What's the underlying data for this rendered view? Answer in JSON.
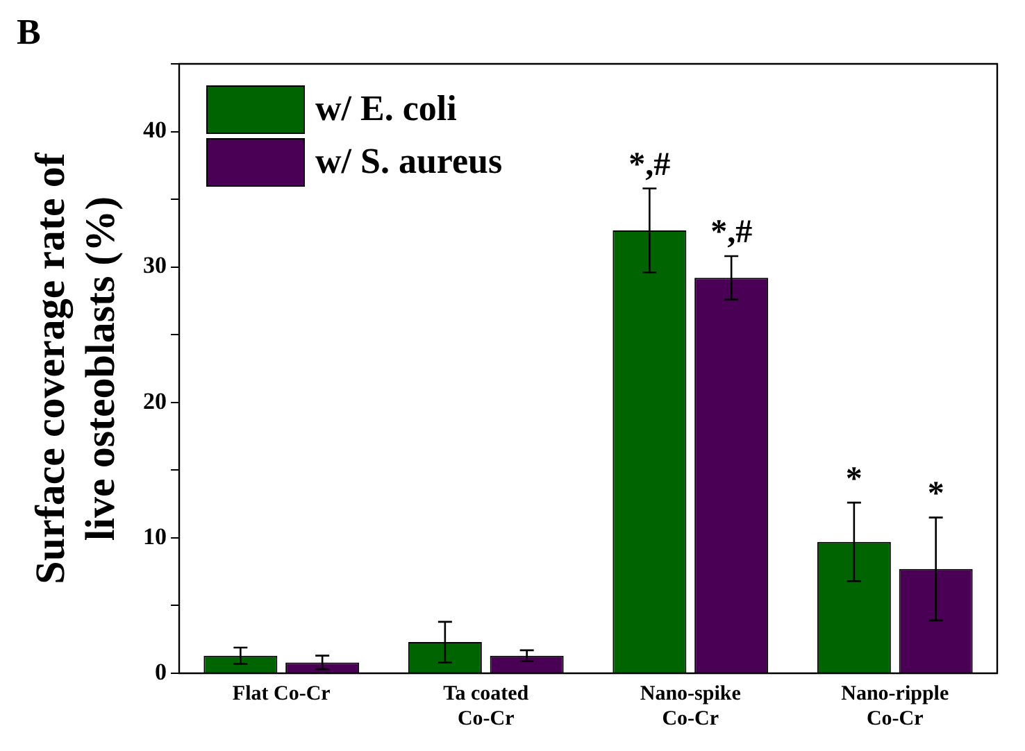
{
  "chart_data": {
    "type": "bar",
    "title": "B",
    "ylabel": "Surface coverage rate of\nlive osteoblasts (%)",
    "categories": [
      "Flat Co-Cr",
      "Ta coated\nCo-Cr",
      "Nano-spike\nCo-Cr",
      "Nano-ripple\nCo-Cr"
    ],
    "series": [
      {
        "name": "w/ E. coli",
        "color": "#006400",
        "values": [
          1.3,
          2.3,
          32.7,
          9.7
        ],
        "errors": [
          0.6,
          1.5,
          3.1,
          2.9
        ]
      },
      {
        "name": "w/ S. aureus",
        "color": "#4a0055",
        "values": [
          0.8,
          1.3,
          29.2,
          7.7
        ],
        "errors": [
          0.5,
          0.4,
          1.6,
          3.8
        ]
      }
    ],
    "ylim": [
      0,
      45
    ],
    "yticks": [
      0,
      {
        "value": 5,
        "label": null
      },
      10,
      {
        "value": 15,
        "label": null
      },
      20,
      {
        "value": 25,
        "label": null
      },
      30,
      {
        "value": 35,
        "label": null
      },
      40,
      {
        "value": 45,
        "label": null
      }
    ],
    "annotations": [
      {
        "text": "*,#",
        "x": "Nano-spike\nCo-Cr",
        "y": 32.7
      },
      {
        "text": "*,#",
        "x": "Nano-spike\nCo-Cr",
        "y": 29.2
      },
      {
        "text": "*",
        "x": "Nano-ripple\nCo-Cr",
        "y": 9.7
      },
      {
        "text": "*",
        "x": "Nano-ripple\nCo-Cr",
        "y": 7.7
      }
    ],
    "grid": false,
    "legend": "top left"
  }
}
